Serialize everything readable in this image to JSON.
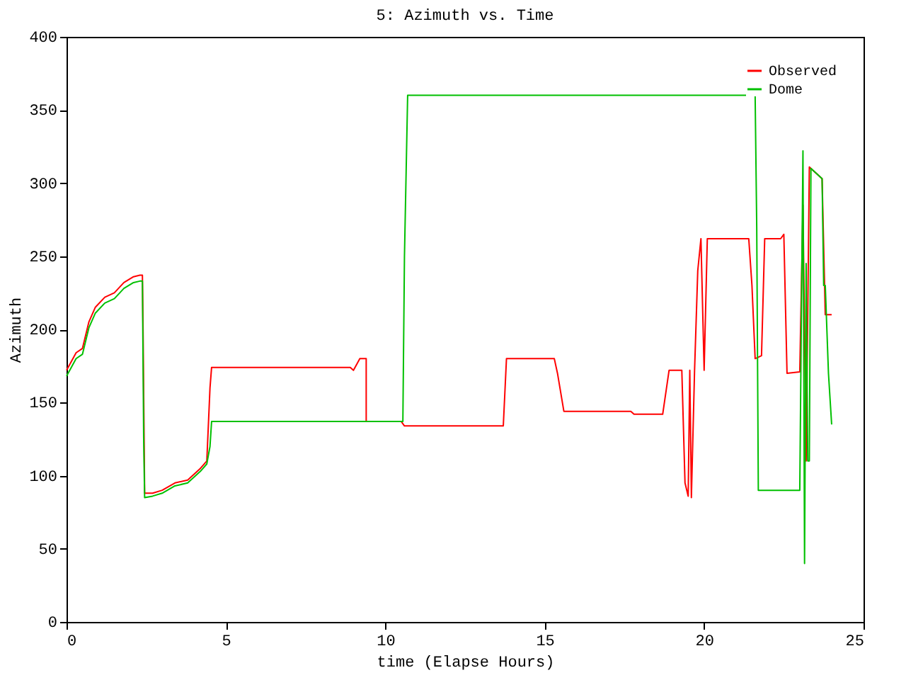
{
  "chart_data": {
    "type": "line",
    "title": "5: Azimuth vs. Time",
    "xlabel": "time (Elapse Hours)",
    "ylabel": "Azimuth",
    "xlim": [
      0,
      25
    ],
    "xticks": [
      0,
      5,
      10,
      15,
      20,
      25
    ],
    "ylim": [
      0,
      400
    ],
    "yticks": [
      0,
      50,
      100,
      150,
      200,
      250,
      300,
      350,
      400
    ],
    "grid": false,
    "legend": "top right",
    "line_style": "solid",
    "marker": "none",
    "series": [
      {
        "name": "Observed",
        "color": "#ff0000",
        "x": [
          0,
          0.3,
          0.5,
          0.7,
          0.9,
          1.2,
          1.5,
          1.8,
          2.1,
          2.3,
          2.38,
          2.4,
          2.45,
          2.7,
          3.0,
          3.4,
          3.8,
          4.2,
          4.4,
          4.5,
          4.55,
          8.9,
          9.0,
          9.2,
          9.3,
          9.4,
          9.4,
          10.5,
          10.6,
          13.7,
          13.8,
          15.3,
          15.4,
          15.6,
          17.7,
          17.8,
          18.7,
          18.9,
          19.3,
          19.4,
          19.5,
          19.55,
          19.6,
          19.7,
          19.8,
          19.9,
          20.0,
          20.1,
          20.2,
          20.3,
          21.4,
          21.5,
          21.6,
          21.8,
          21.9,
          22.4,
          22.5,
          22.6,
          23.0,
          23.1,
          23.2,
          23.3,
          23.5,
          23.7,
          23.8,
          24.0
        ],
        "values": [
          172,
          184,
          187,
          205,
          215,
          222,
          225,
          232,
          236,
          237,
          237,
          200,
          88,
          88,
          90,
          95,
          97,
          105,
          110,
          160,
          174,
          174,
          172,
          180,
          180,
          180,
          137,
          137,
          134,
          134,
          180,
          180,
          170,
          144,
          144,
          142,
          142,
          172,
          172,
          95,
          86,
          172,
          85,
          172,
          240,
          262,
          172,
          262,
          262,
          262,
          262,
          230,
          180,
          182,
          262,
          262,
          265,
          170,
          171,
          285,
          110,
          311,
          307,
          303,
          210,
          210
        ]
      },
      {
        "name": "Dome",
        "color": "#00c000",
        "x": [
          0,
          0.3,
          0.5,
          0.7,
          0.9,
          1.2,
          1.5,
          1.8,
          2.1,
          2.3,
          2.38,
          2.42,
          2.45,
          2.7,
          3.0,
          3.4,
          3.8,
          4.2,
          4.4,
          4.5,
          4.55,
          10.55,
          10.6,
          10.7,
          21.6,
          21.65,
          21.7,
          23.0,
          23.05,
          23.1,
          23.15,
          23.2,
          23.25,
          23.3,
          23.35,
          23.7,
          23.75,
          23.8,
          23.9,
          24.0
        ],
        "values": [
          168,
          180,
          183,
          201,
          211,
          218,
          221,
          228,
          232,
          233,
          233,
          125,
          85,
          86,
          88,
          93,
          95,
          103,
          108,
          120,
          137,
          137,
          250,
          360,
          360,
          270,
          90,
          90,
          208,
          322,
          40,
          245,
          110,
          110,
          310,
          303,
          230,
          230,
          170,
          135
        ]
      }
    ]
  }
}
